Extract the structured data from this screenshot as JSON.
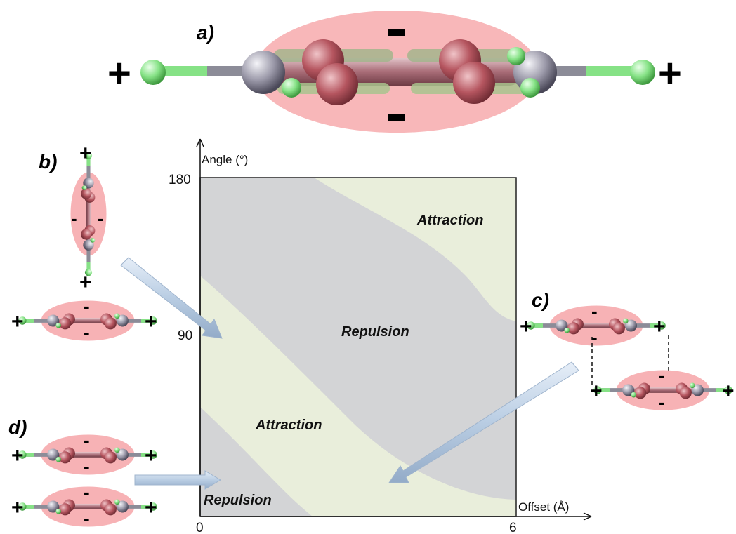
{
  "panels": {
    "a": "a)",
    "b": "b)",
    "c": "c)",
    "d": "d)"
  },
  "charges": {
    "plus": "+",
    "minus": "-"
  },
  "chart_data": {
    "type": "heatmap",
    "title": "",
    "xlabel": "Offset (Å)",
    "ylabel": "Angle (°)",
    "xlim": [
      0,
      6
    ],
    "ylim": [
      0,
      180
    ],
    "x_ticks": [
      "0",
      "6"
    ],
    "y_ticks": [
      "180",
      "90"
    ],
    "regions": [
      {
        "label": "Attraction",
        "kind": "attraction"
      },
      {
        "label": "Repulsion",
        "kind": "repulsion"
      },
      {
        "label": "Attraction",
        "kind": "attraction"
      },
      {
        "label": "Repulsion",
        "kind": "repulsion"
      }
    ]
  },
  "colors": {
    "attraction": "#e9eedb",
    "repulsion": "#d3d4d6",
    "cloud": "#f6a5a8",
    "arrow": "#bfd1e5",
    "carbon_ring": "#c98a93",
    "atom_red": "#b5555f",
    "atom_grey": "#9a9aa8",
    "fluorine_green": "#7ee07e"
  }
}
